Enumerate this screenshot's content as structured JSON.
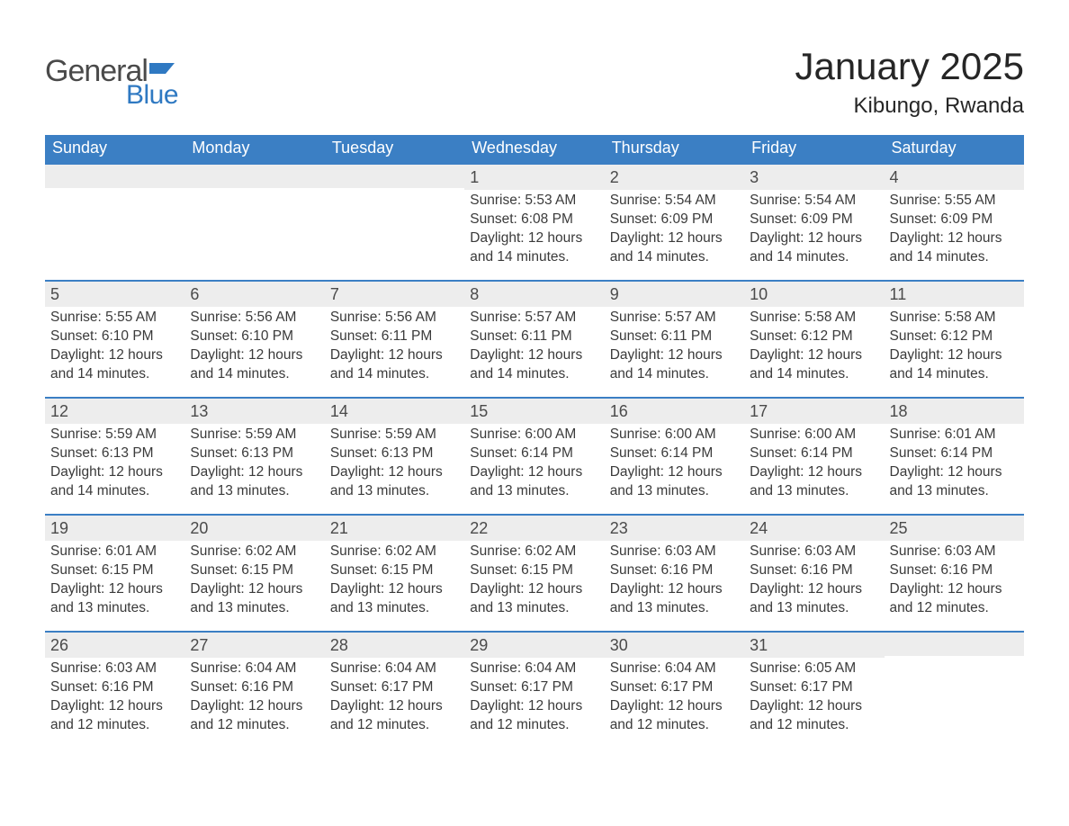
{
  "branding": {
    "word1": "General",
    "word2": "Blue",
    "logo_color": "#2f79c2",
    "text_color": "#4a4a4a"
  },
  "header": {
    "title": "January 2025",
    "location": "Kibungo, Rwanda"
  },
  "colors": {
    "header_bg": "#3b7fc4",
    "header_text": "#ffffff",
    "daynum_bg": "#ededed",
    "rule": "#3b7fc4",
    "body_text": "#3a3a3a",
    "page_bg": "#ffffff"
  },
  "weekdays": [
    "Sunday",
    "Monday",
    "Tuesday",
    "Wednesday",
    "Thursday",
    "Friday",
    "Saturday"
  ],
  "weeks": [
    [
      null,
      null,
      null,
      {
        "n": "1",
        "sunrise": "Sunrise: 5:53 AM",
        "sunset": "Sunset: 6:08 PM",
        "dl1": "Daylight: 12 hours",
        "dl2": "and 14 minutes."
      },
      {
        "n": "2",
        "sunrise": "Sunrise: 5:54 AM",
        "sunset": "Sunset: 6:09 PM",
        "dl1": "Daylight: 12 hours",
        "dl2": "and 14 minutes."
      },
      {
        "n": "3",
        "sunrise": "Sunrise: 5:54 AM",
        "sunset": "Sunset: 6:09 PM",
        "dl1": "Daylight: 12 hours",
        "dl2": "and 14 minutes."
      },
      {
        "n": "4",
        "sunrise": "Sunrise: 5:55 AM",
        "sunset": "Sunset: 6:09 PM",
        "dl1": "Daylight: 12 hours",
        "dl2": "and 14 minutes."
      }
    ],
    [
      {
        "n": "5",
        "sunrise": "Sunrise: 5:55 AM",
        "sunset": "Sunset: 6:10 PM",
        "dl1": "Daylight: 12 hours",
        "dl2": "and 14 minutes."
      },
      {
        "n": "6",
        "sunrise": "Sunrise: 5:56 AM",
        "sunset": "Sunset: 6:10 PM",
        "dl1": "Daylight: 12 hours",
        "dl2": "and 14 minutes."
      },
      {
        "n": "7",
        "sunrise": "Sunrise: 5:56 AM",
        "sunset": "Sunset: 6:11 PM",
        "dl1": "Daylight: 12 hours",
        "dl2": "and 14 minutes."
      },
      {
        "n": "8",
        "sunrise": "Sunrise: 5:57 AM",
        "sunset": "Sunset: 6:11 PM",
        "dl1": "Daylight: 12 hours",
        "dl2": "and 14 minutes."
      },
      {
        "n": "9",
        "sunrise": "Sunrise: 5:57 AM",
        "sunset": "Sunset: 6:11 PM",
        "dl1": "Daylight: 12 hours",
        "dl2": "and 14 minutes."
      },
      {
        "n": "10",
        "sunrise": "Sunrise: 5:58 AM",
        "sunset": "Sunset: 6:12 PM",
        "dl1": "Daylight: 12 hours",
        "dl2": "and 14 minutes."
      },
      {
        "n": "11",
        "sunrise": "Sunrise: 5:58 AM",
        "sunset": "Sunset: 6:12 PM",
        "dl1": "Daylight: 12 hours",
        "dl2": "and 14 minutes."
      }
    ],
    [
      {
        "n": "12",
        "sunrise": "Sunrise: 5:59 AM",
        "sunset": "Sunset: 6:13 PM",
        "dl1": "Daylight: 12 hours",
        "dl2": "and 14 minutes."
      },
      {
        "n": "13",
        "sunrise": "Sunrise: 5:59 AM",
        "sunset": "Sunset: 6:13 PM",
        "dl1": "Daylight: 12 hours",
        "dl2": "and 13 minutes."
      },
      {
        "n": "14",
        "sunrise": "Sunrise: 5:59 AM",
        "sunset": "Sunset: 6:13 PM",
        "dl1": "Daylight: 12 hours",
        "dl2": "and 13 minutes."
      },
      {
        "n": "15",
        "sunrise": "Sunrise: 6:00 AM",
        "sunset": "Sunset: 6:14 PM",
        "dl1": "Daylight: 12 hours",
        "dl2": "and 13 minutes."
      },
      {
        "n": "16",
        "sunrise": "Sunrise: 6:00 AM",
        "sunset": "Sunset: 6:14 PM",
        "dl1": "Daylight: 12 hours",
        "dl2": "and 13 minutes."
      },
      {
        "n": "17",
        "sunrise": "Sunrise: 6:00 AM",
        "sunset": "Sunset: 6:14 PM",
        "dl1": "Daylight: 12 hours",
        "dl2": "and 13 minutes."
      },
      {
        "n": "18",
        "sunrise": "Sunrise: 6:01 AM",
        "sunset": "Sunset: 6:14 PM",
        "dl1": "Daylight: 12 hours",
        "dl2": "and 13 minutes."
      }
    ],
    [
      {
        "n": "19",
        "sunrise": "Sunrise: 6:01 AM",
        "sunset": "Sunset: 6:15 PM",
        "dl1": "Daylight: 12 hours",
        "dl2": "and 13 minutes."
      },
      {
        "n": "20",
        "sunrise": "Sunrise: 6:02 AM",
        "sunset": "Sunset: 6:15 PM",
        "dl1": "Daylight: 12 hours",
        "dl2": "and 13 minutes."
      },
      {
        "n": "21",
        "sunrise": "Sunrise: 6:02 AM",
        "sunset": "Sunset: 6:15 PM",
        "dl1": "Daylight: 12 hours",
        "dl2": "and 13 minutes."
      },
      {
        "n": "22",
        "sunrise": "Sunrise: 6:02 AM",
        "sunset": "Sunset: 6:15 PM",
        "dl1": "Daylight: 12 hours",
        "dl2": "and 13 minutes."
      },
      {
        "n": "23",
        "sunrise": "Sunrise: 6:03 AM",
        "sunset": "Sunset: 6:16 PM",
        "dl1": "Daylight: 12 hours",
        "dl2": "and 13 minutes."
      },
      {
        "n": "24",
        "sunrise": "Sunrise: 6:03 AM",
        "sunset": "Sunset: 6:16 PM",
        "dl1": "Daylight: 12 hours",
        "dl2": "and 13 minutes."
      },
      {
        "n": "25",
        "sunrise": "Sunrise: 6:03 AM",
        "sunset": "Sunset: 6:16 PM",
        "dl1": "Daylight: 12 hours",
        "dl2": "and 12 minutes."
      }
    ],
    [
      {
        "n": "26",
        "sunrise": "Sunrise: 6:03 AM",
        "sunset": "Sunset: 6:16 PM",
        "dl1": "Daylight: 12 hours",
        "dl2": "and 12 minutes."
      },
      {
        "n": "27",
        "sunrise": "Sunrise: 6:04 AM",
        "sunset": "Sunset: 6:16 PM",
        "dl1": "Daylight: 12 hours",
        "dl2": "and 12 minutes."
      },
      {
        "n": "28",
        "sunrise": "Sunrise: 6:04 AM",
        "sunset": "Sunset: 6:17 PM",
        "dl1": "Daylight: 12 hours",
        "dl2": "and 12 minutes."
      },
      {
        "n": "29",
        "sunrise": "Sunrise: 6:04 AM",
        "sunset": "Sunset: 6:17 PM",
        "dl1": "Daylight: 12 hours",
        "dl2": "and 12 minutes."
      },
      {
        "n": "30",
        "sunrise": "Sunrise: 6:04 AM",
        "sunset": "Sunset: 6:17 PM",
        "dl1": "Daylight: 12 hours",
        "dl2": "and 12 minutes."
      },
      {
        "n": "31",
        "sunrise": "Sunrise: 6:05 AM",
        "sunset": "Sunset: 6:17 PM",
        "dl1": "Daylight: 12 hours",
        "dl2": "and 12 minutes."
      },
      null
    ]
  ]
}
